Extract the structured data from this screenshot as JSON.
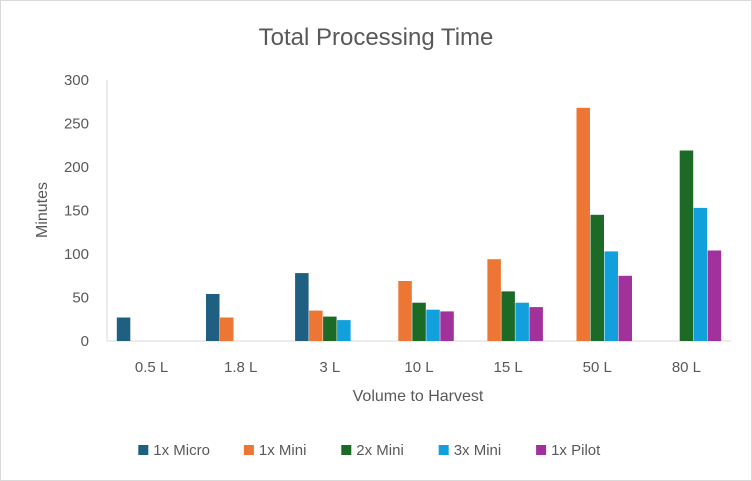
{
  "chart_data": {
    "type": "bar",
    "title": "Total Processing Time",
    "xlabel": "Volume to Harvest",
    "ylabel": "Minutes",
    "ylim": [
      0,
      300
    ],
    "yticks": [
      0,
      50,
      100,
      150,
      200,
      250,
      300
    ],
    "grid": false,
    "legend_position": "bottom",
    "categories": [
      "0.5 L",
      "1.8 L",
      "3 L",
      "10 L",
      "15 L",
      "50 L",
      "80 L"
    ],
    "series": [
      {
        "name": "1x Micro",
        "color": "#1f5f82",
        "values": [
          27,
          54,
          78,
          null,
          null,
          null,
          null
        ]
      },
      {
        "name": "1x Mini",
        "color": "#ed7635",
        "values": [
          null,
          27,
          35,
          69,
          94,
          268,
          null
        ]
      },
      {
        "name": "2x Mini",
        "color": "#1b6b27",
        "values": [
          null,
          null,
          28,
          44,
          57,
          145,
          219
        ]
      },
      {
        "name": "3x Mini",
        "color": "#12a0dc",
        "values": [
          null,
          null,
          24,
          36,
          44,
          103,
          153
        ]
      },
      {
        "name": "1x Pilot",
        "color": "#a1329c",
        "values": [
          null,
          null,
          null,
          34,
          39,
          75,
          104
        ]
      }
    ]
  }
}
